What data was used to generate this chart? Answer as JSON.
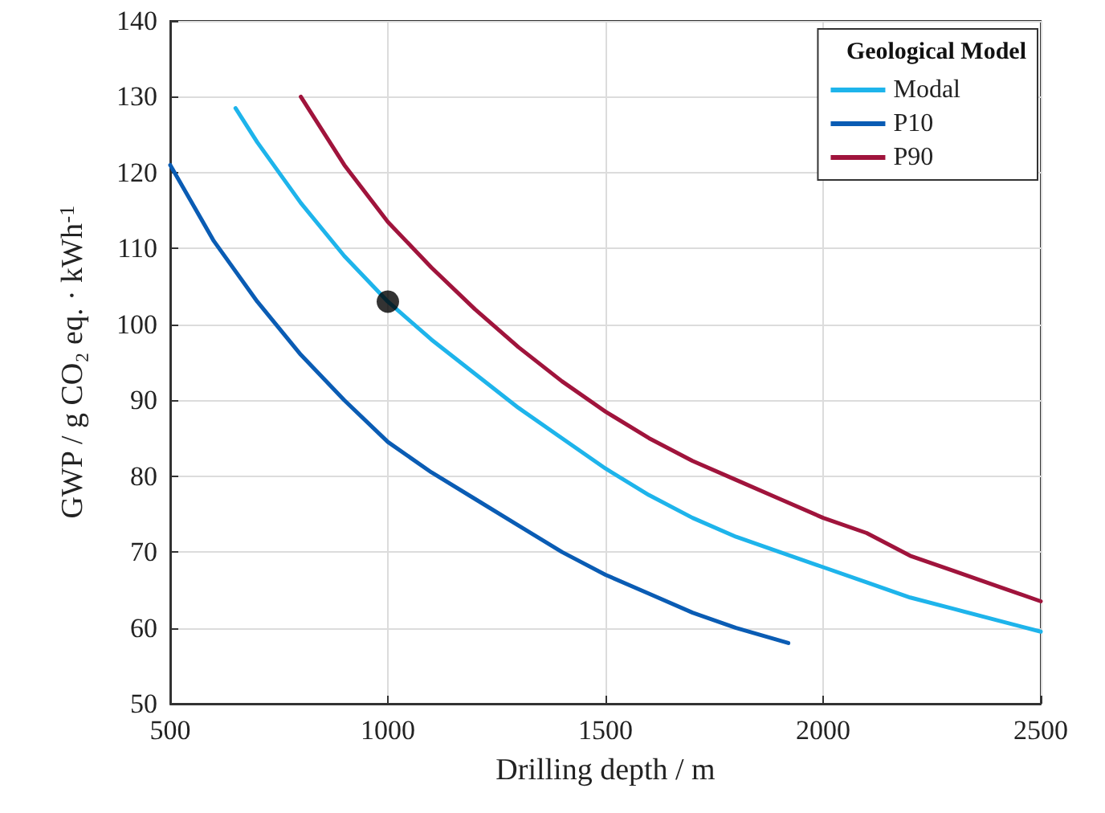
{
  "chart_data": {
    "type": "line",
    "xlabel": "Drilling depth / m",
    "ylabel": "GWP / g CO₂ eq. · kWh$^{-1}$",
    "legend_title": "Geological Model",
    "xlim": [
      500,
      2500
    ],
    "xticks": [
      500,
      1000,
      1500,
      2000,
      2500
    ],
    "ylim": [
      50,
      140
    ],
    "yticks": [
      50,
      60,
      70,
      80,
      90,
      100,
      110,
      120,
      130,
      140
    ],
    "grid": true,
    "legend": "top right",
    "marker": "none",
    "line_style": "solid",
    "series": [
      {
        "name": "Modal",
        "color": "#1eb4eb",
        "x": [
          650,
          700,
          800,
          900,
          1000,
          1100,
          1200,
          1300,
          1400,
          1500,
          1600,
          1700,
          1800,
          1900,
          2000,
          2100,
          2200,
          2300,
          2400,
          2500
        ],
        "values": [
          128.5,
          124,
          116,
          109,
          103,
          98,
          93.5,
          89,
          85,
          81,
          77.5,
          74.5,
          72,
          70,
          68,
          66,
          64,
          62.5,
          61,
          59.5
        ]
      },
      {
        "name": "P10",
        "color": "#0a5cb4",
        "x": [
          500,
          600,
          700,
          800,
          900,
          1000,
          1100,
          1200,
          1300,
          1400,
          1500,
          1600,
          1700,
          1800,
          1920
        ],
        "values": [
          121,
          111,
          103,
          96,
          90,
          84.5,
          80.5,
          77,
          73.5,
          70,
          67,
          64.5,
          62,
          60,
          58
        ]
      },
      {
        "name": "P90",
        "color": "#a0143c",
        "x": [
          800,
          900,
          1000,
          1100,
          1200,
          1300,
          1400,
          1500,
          1600,
          1700,
          1800,
          1900,
          2000,
          2100,
          2200,
          2300,
          2400,
          2500
        ],
        "values": [
          130,
          121,
          113.5,
          107.5,
          102,
          97,
          92.5,
          88.5,
          85,
          82,
          79.5,
          77,
          74.5,
          72.5,
          69.5,
          67.5,
          65.5,
          63.5
        ]
      },
      {
        "type": "scatter",
        "marker": "circle",
        "color": "#000000",
        "x": [
          1000
        ],
        "values": [
          103
        ]
      }
    ]
  }
}
